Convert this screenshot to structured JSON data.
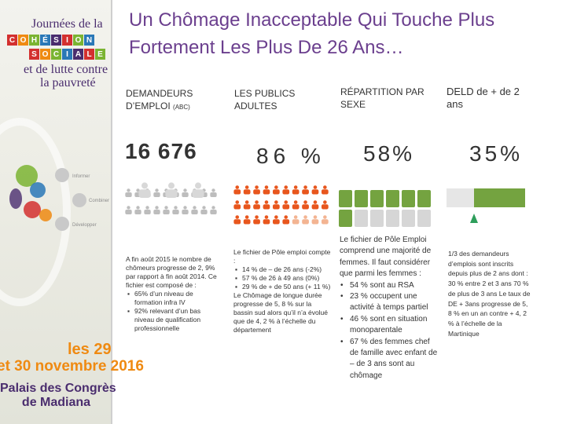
{
  "banner": {
    "line1": "Journées de la",
    "cohesion_tiles": [
      "C",
      "O",
      "H",
      "É",
      "S",
      "I",
      "O",
      "N"
    ],
    "sociale_tiles": [
      "S",
      "O",
      "C",
      "I",
      "A",
      "L",
      "E"
    ],
    "line4": "et de lutte contre",
    "line5": "la pauvreté",
    "strip_labels": [
      "Informer",
      "Combiner",
      "Développer"
    ],
    "date1": "les 29",
    "date2": "et 30 novembre 2016",
    "venue1": "Palais des Congrès",
    "venue2": "de Madiana",
    "colors": {
      "purple": "#4a2d6e",
      "orange": "#ef8a12",
      "green": "#7bb432",
      "blue": "#2a78b7",
      "red": "#d3302f"
    }
  },
  "title": "Un Chômage Inacceptable Qui Touche Plus Fortement Les Plus De 26 Ans…",
  "columns": [
    {
      "heading": "DEMANDEURS D’EMPLOI",
      "heading_sub": "(ABC)",
      "value": "16 676",
      "figure": "grey-people-icon",
      "text": "A fin août 2015 le nombre de chômeurs progresse de 2, 9% par rapport à fin août 2014. Ce fichier est composé de :",
      "bullets": [
        "65% d’un niveau de formation infra IV",
        "92% relevant d’un bas niveau de qualification professionnelle"
      ]
    },
    {
      "heading": "LES PUBLICS ADULTES",
      "value": "86 %",
      "figure": "orange-people-icon",
      "figure_share": 0.86,
      "text": "Le fichier de Pôle emploi compte :",
      "bullets": [
        "14 % de – de 26 ans (-2%)",
        "57 % de 26 à 49 ans (0%)",
        "29 % de + de 50 ans (+ 11 %)"
      ],
      "text2": "Le Chômage de longue durée progresse de 5, 8 % sur la bassin sud alors qu’il n’a évolué que de 4, 2 % à l’échelle du département"
    },
    {
      "heading": "RÉPARTITION PAR SEXE",
      "value": "58%",
      "figure": "gender-squares",
      "figure_share": 0.58,
      "text": "Le fichier de Pôle Emploi comprend une majorité de femmes. Il faut considérer que parmi les femmes :",
      "bullets": [
        "54 % sont au RSA",
        "23 % occupent une activité à temps partiel",
        "46 % sont en situation monoparentale",
        "67 % des femmes chef de famille avec enfant de – de 3 ans sont au chômage"
      ]
    },
    {
      "heading": "DELD de + de 2 ans",
      "value": "35%",
      "figure": "progress-bar",
      "figure_share": 0.35,
      "text": "1/3 des demandeurs d’emplois sont inscrits depuis plus de 2 ans dont : 30 % entre 2 et 3 ans 70 % de plus de 3 ans Le taux de DE + 3ans progresse de 5, 8 % en un an contre + 4, 2 % à l’échelle de la Martinique"
    }
  ],
  "palette": {
    "green": "#74a340",
    "light_green": "#c9e0ad",
    "grey": "#d6d6d6",
    "figure_grey": "#bdbdbd",
    "orange": "#e8561d",
    "orange_light": "#f3b492"
  }
}
